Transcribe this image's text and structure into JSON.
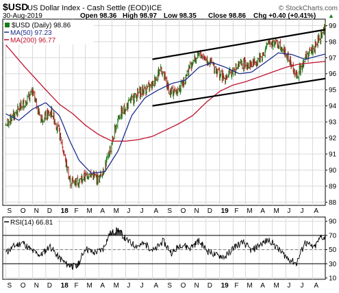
{
  "header": {
    "symbol": "$USD",
    "name": "US Dollar Index - Cash Settle (EOD)",
    "exchange": "ICE",
    "watermark": "© StockCharts.com",
    "date": "30-Aug-2019",
    "open": "Open 98.36",
    "high": "High 98.97",
    "low": "Low 98.35",
    "close": "Close 98.86",
    "chg": "Chg +0.40 (+0.41%)",
    "up_arrow": "▲"
  },
  "legend": {
    "price": "$USD (Daily) 98.86",
    "ma50": "MA(50) 97.23",
    "ma200": "MA(200) 96.77"
  },
  "rsi_label": "RSI(14) 66.81",
  "colors": {
    "price_up": "#1a7a1a",
    "price_down": "#b22222",
    "ma50": "#1c2e8c",
    "ma200": "#c0102c",
    "grid": "#d8d8d8",
    "rsi_line": "#000000",
    "rsi_ob_fill": "#444444"
  },
  "chart_data": [
    {
      "type": "line",
      "title": "$USD US Dollar Index - Cash Settle (EOD) ICE",
      "x_ticks": [
        "S",
        "O",
        "N",
        "D",
        "18",
        "F",
        "M",
        "A",
        "M",
        "J",
        "J",
        "A",
        "S",
        "O",
        "N",
        "D",
        "19",
        "F",
        "M",
        "A",
        "M",
        "J",
        "J",
        "A"
      ],
      "ylim": [
        87.8,
        99.4
      ],
      "y_ticks": [
        88,
        89,
        90,
        91,
        92,
        93,
        94,
        95,
        96,
        97,
        98,
        99
      ],
      "series": [
        {
          "name": "$USD (Daily)",
          "x": [
            "2017-09-01",
            "2017-10-01",
            "2017-11-01",
            "2017-11-20",
            "2017-12-15",
            "2018-01-01",
            "2018-01-25",
            "2018-02-15",
            "2018-03-10",
            "2018-04-01",
            "2018-04-20",
            "2018-05-15",
            "2018-06-10",
            "2018-07-01",
            "2018-08-01",
            "2018-08-20",
            "2018-09-10",
            "2018-10-01",
            "2018-11-01",
            "2018-11-20",
            "2018-12-15",
            "2019-01-10",
            "2019-02-01",
            "2019-02-20",
            "2019-03-15",
            "2019-04-05",
            "2019-04-25",
            "2019-05-20",
            "2019-06-10",
            "2019-06-25",
            "2019-07-15",
            "2019-08-05",
            "2019-08-30"
          ],
          "values": [
            92.8,
            93.8,
            94.8,
            93.2,
            93.6,
            92.3,
            89.3,
            89.3,
            89.8,
            89.4,
            90.6,
            93.3,
            94.2,
            94.8,
            95.3,
            96.4,
            94.8,
            95.0,
            96.8,
            97.2,
            96.6,
            95.7,
            96.2,
            96.6,
            96.6,
            97.0,
            98.0,
            97.8,
            96.8,
            95.8,
            97.0,
            97.6,
            98.86
          ]
        },
        {
          "name": "MA(50)",
          "x": [
            "2017-09-01",
            "2017-10-01",
            "2017-11-01",
            "2017-12-01",
            "2018-01-01",
            "2018-01-25",
            "2018-02-15",
            "2018-03-15",
            "2018-04-15",
            "2018-05-15",
            "2018-06-15",
            "2018-07-15",
            "2018-08-15",
            "2018-09-15",
            "2018-10-15",
            "2018-11-15",
            "2018-12-15",
            "2019-01-15",
            "2019-02-15",
            "2019-03-15",
            "2019-04-15",
            "2019-05-15",
            "2019-06-15",
            "2019-07-15",
            "2019-08-30"
          ],
          "values": [
            93.5,
            93.1,
            93.8,
            94.2,
            93.4,
            91.8,
            90.6,
            89.8,
            89.9,
            91.2,
            93.4,
            94.5,
            95.0,
            95.4,
            95.6,
            96.4,
            96.7,
            96.4,
            96.0,
            96.1,
            96.7,
            97.3,
            97.2,
            96.9,
            97.23
          ]
        },
        {
          "name": "MA(200)",
          "x": [
            "2017-09-01",
            "2017-10-15",
            "2017-12-01",
            "2018-01-01",
            "2018-02-01",
            "2018-03-01",
            "2018-04-01",
            "2018-05-01",
            "2018-06-01",
            "2018-07-01",
            "2018-08-01",
            "2018-09-01",
            "2018-10-01",
            "2018-11-01",
            "2018-12-01",
            "2019-01-01",
            "2019-02-01",
            "2019-03-01",
            "2019-04-01",
            "2019-05-01",
            "2019-06-01",
            "2019-07-01",
            "2019-08-30"
          ],
          "values": [
            97.8,
            96.4,
            95.0,
            94.1,
            93.5,
            92.8,
            92.2,
            91.8,
            91.8,
            91.9,
            92.1,
            92.5,
            92.9,
            93.4,
            94.2,
            94.9,
            95.3,
            95.5,
            95.8,
            96.1,
            96.4,
            96.6,
            96.77
          ]
        },
        {
          "name": "Channel upper",
          "x": [
            "2018-08-01",
            "2019-08-30"
          ],
          "values": [
            96.9,
            98.75
          ]
        },
        {
          "name": "Channel lower",
          "x": [
            "2018-08-01",
            "2019-08-30"
          ],
          "values": [
            94.0,
            95.7
          ]
        }
      ]
    },
    {
      "type": "line",
      "title": "RSI(14) 66.81",
      "x_ticks": [
        "S",
        "O",
        "N",
        "D",
        "18",
        "F",
        "M",
        "A",
        "M",
        "J",
        "J",
        "A",
        "S",
        "O",
        "N",
        "D",
        "19",
        "F",
        "M",
        "A",
        "M",
        "J",
        "J",
        "A"
      ],
      "ylim": [
        8,
        96
      ],
      "y_ticks": [
        10,
        30,
        50,
        70,
        90
      ],
      "reference_lines": [
        30,
        70
      ],
      "series": [
        {
          "name": "RSI(14)",
          "x": [
            "2017-09-01",
            "2017-09-20",
            "2017-10-10",
            "2017-10-30",
            "2017-11-20",
            "2017-12-10",
            "2018-01-01",
            "2018-01-20",
            "2018-02-10",
            "2018-03-01",
            "2018-03-20",
            "2018-04-10",
            "2018-04-25",
            "2018-05-15",
            "2018-06-05",
            "2018-06-25",
            "2018-07-15",
            "2018-08-05",
            "2018-08-25",
            "2018-09-15",
            "2018-10-05",
            "2018-10-25",
            "2018-11-15",
            "2018-12-05",
            "2018-12-25",
            "2019-01-15",
            "2019-02-05",
            "2019-02-25",
            "2019-03-15",
            "2019-04-05",
            "2019-04-25",
            "2019-05-15",
            "2019-06-05",
            "2019-06-25",
            "2019-07-15",
            "2019-08-05",
            "2019-08-20",
            "2019-08-30"
          ],
          "values": [
            45,
            55,
            60,
            48,
            42,
            55,
            38,
            28,
            25,
            52,
            45,
            50,
            72,
            78,
            62,
            55,
            58,
            48,
            62,
            45,
            58,
            52,
            62,
            48,
            42,
            40,
            55,
            60,
            48,
            58,
            64,
            50,
            38,
            30,
            60,
            52,
            68,
            66.81
          ]
        }
      ]
    }
  ]
}
